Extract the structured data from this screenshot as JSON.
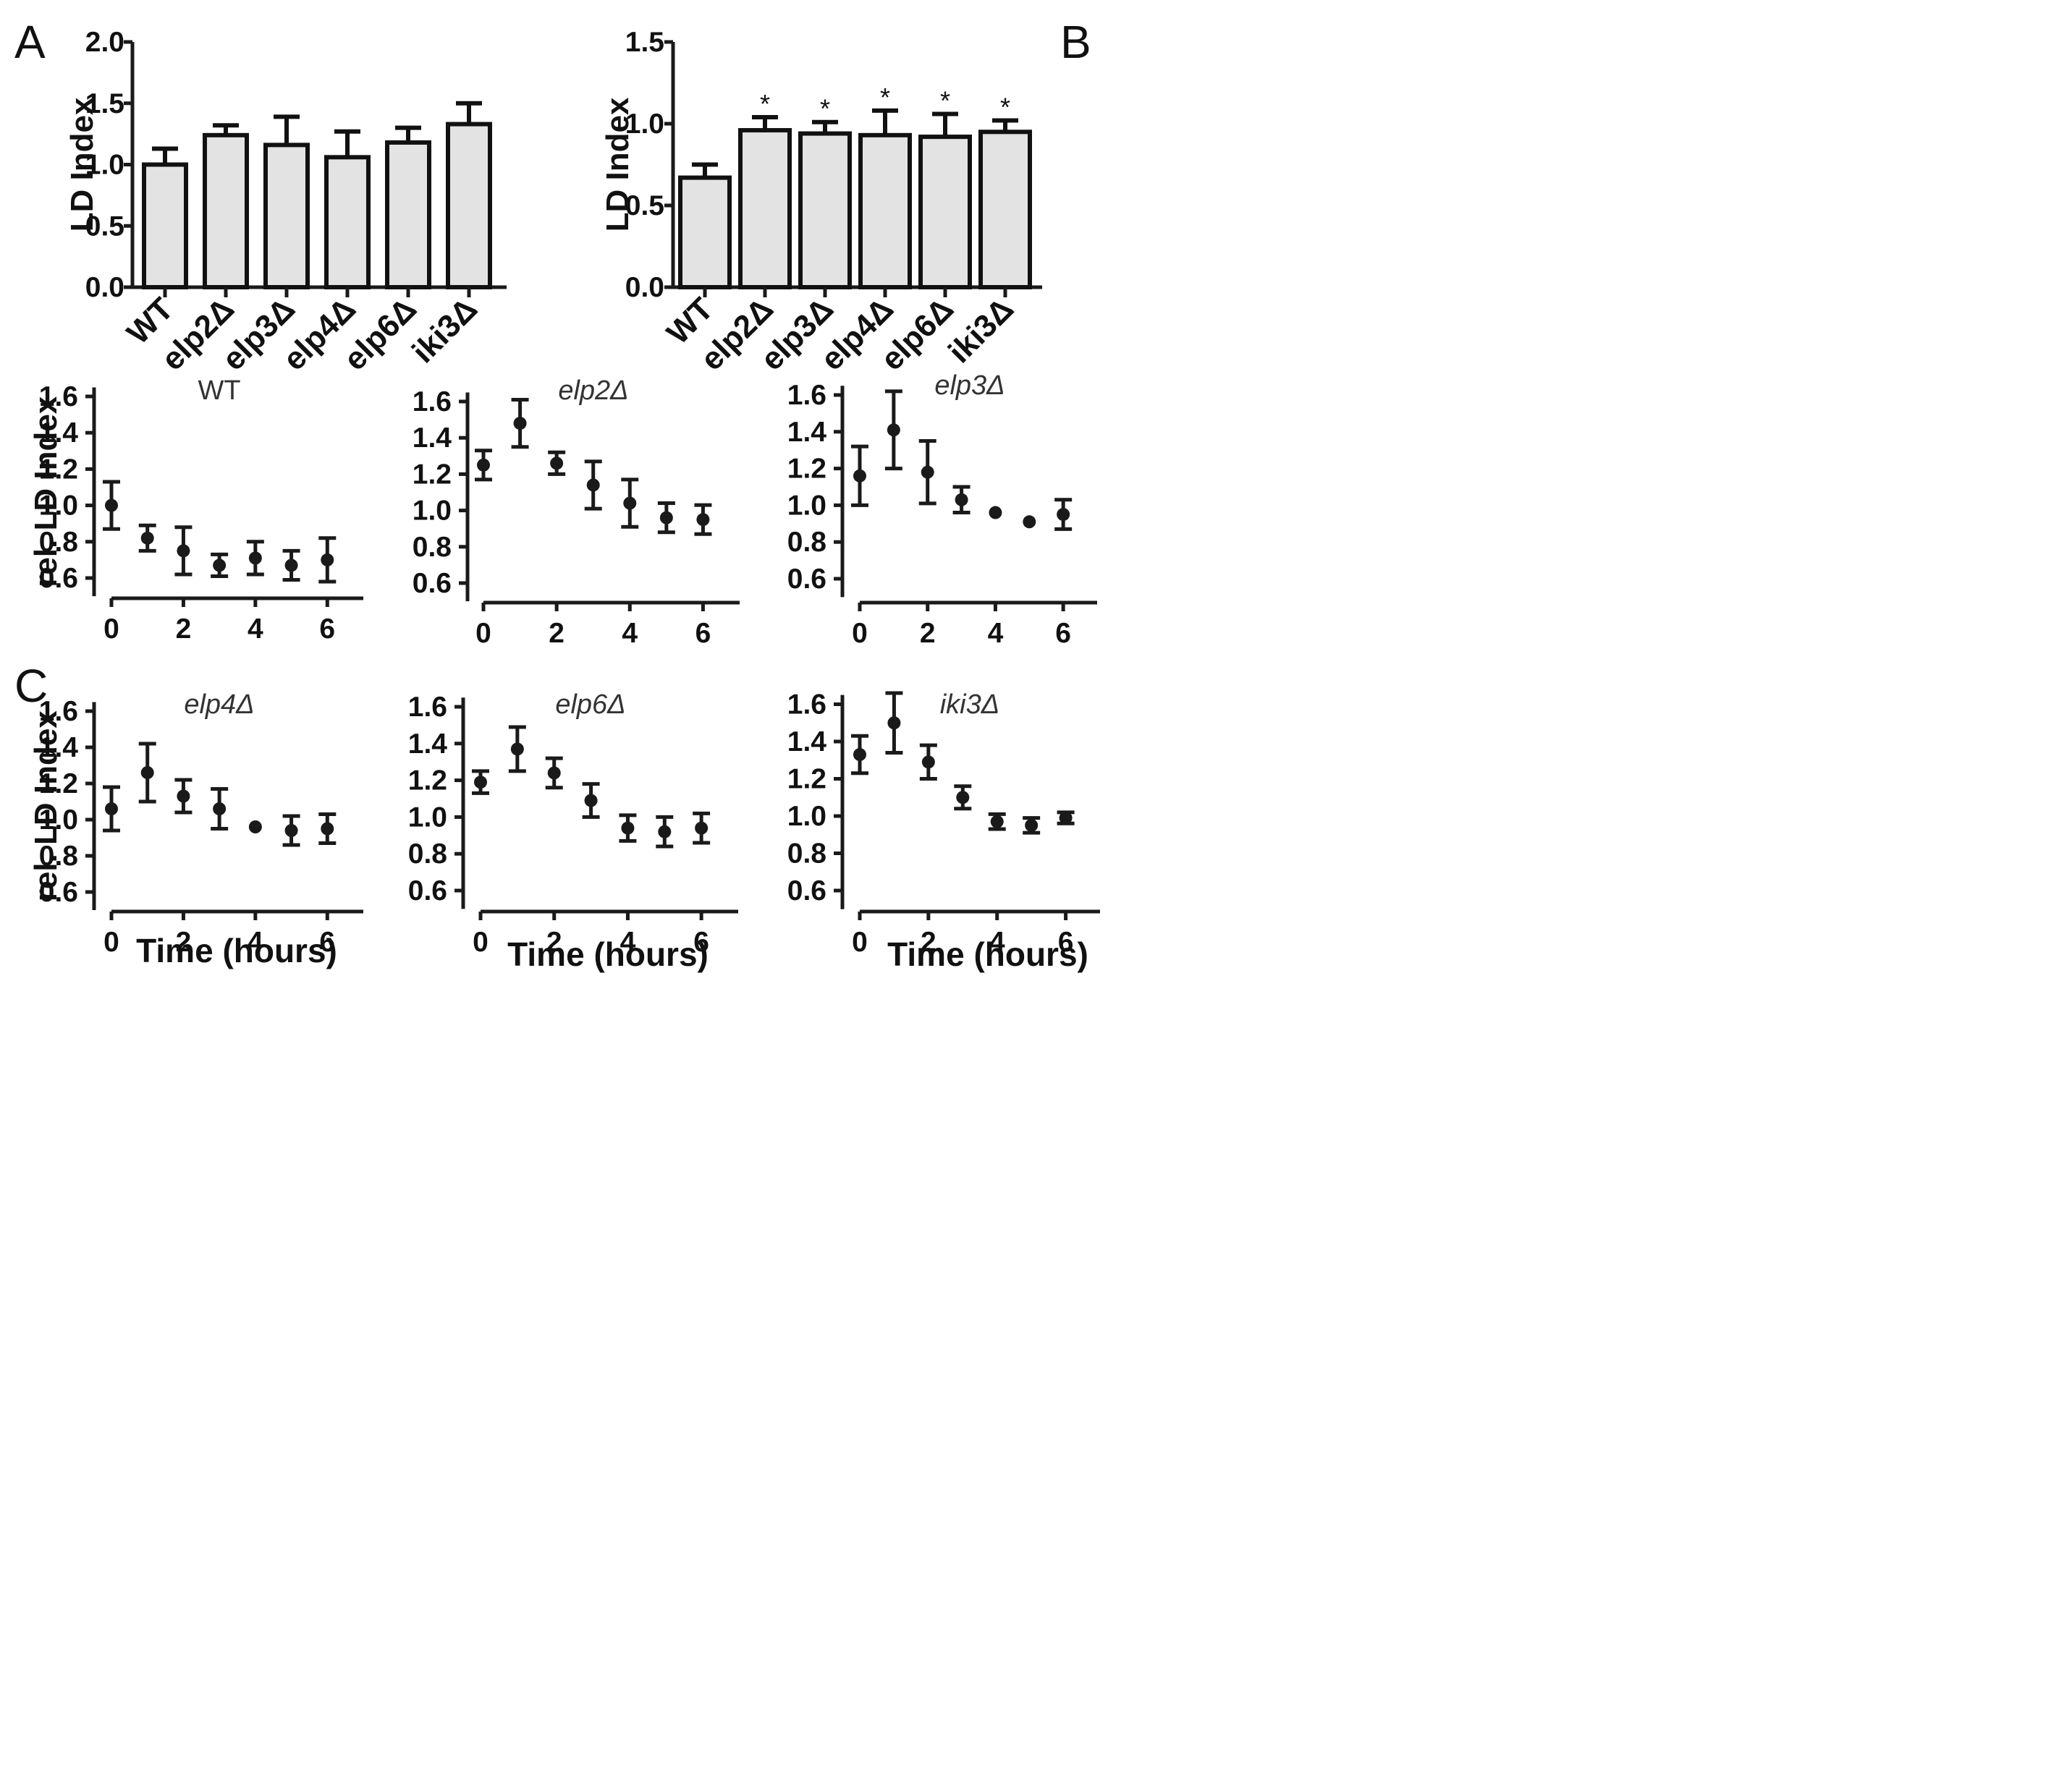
{
  "figure": {
    "panel_labels": [
      "A",
      "B",
      "C"
    ]
  },
  "chart_data": [
    {
      "id": "A",
      "type": "bar",
      "ylabel": "LD Index",
      "ylim": [
        0,
        2.0
      ],
      "yticks": [
        0.0,
        0.5,
        1.0,
        1.5,
        2.0
      ],
      "ytick_labels": [
        "0.0",
        "0.5",
        "1.0",
        "1.5",
        "2.0"
      ],
      "categories": [
        "WT",
        "elp2Δ",
        "elp3Δ",
        "elp4Δ",
        "elp6Δ",
        "iki3Δ"
      ],
      "values": [
        1.0,
        1.24,
        1.16,
        1.06,
        1.18,
        1.33
      ],
      "errors": [
        0.13,
        0.08,
        0.23,
        0.21,
        0.12,
        0.17
      ],
      "annotations": [
        "",
        "",
        "",
        "",
        "",
        ""
      ],
      "bar_color": "#e3e3e3"
    },
    {
      "id": "B",
      "type": "bar",
      "ylabel": "LD Index",
      "ylim": [
        0,
        1.5
      ],
      "yticks": [
        0.0,
        0.5,
        1.0,
        1.5
      ],
      "ytick_labels": [
        "0.0",
        "0.5",
        "1.0",
        "1.5"
      ],
      "categories": [
        "WT",
        "elp2Δ",
        "elp3Δ",
        "elp4Δ",
        "elp6Δ",
        "iki3Δ"
      ],
      "values": [
        0.67,
        0.96,
        0.94,
        0.93,
        0.92,
        0.95
      ],
      "errors": [
        0.08,
        0.08,
        0.07,
        0.15,
        0.14,
        0.07
      ],
      "annotations": [
        "",
        "*",
        "*",
        "*",
        "*",
        "*"
      ],
      "bar_color": "#e3e3e3"
    },
    {
      "id": "C-WT",
      "type": "scatter",
      "title": "WT",
      "title_italic": false,
      "ylabel": "rel. LD Index",
      "xlabel": "",
      "xlim": [
        0,
        7
      ],
      "ylim": [
        0.5,
        1.65
      ],
      "yticks": [
        0.6,
        0.8,
        1.0,
        1.2,
        1.4,
        1.6
      ],
      "ytick_labels": [
        "0.6",
        "0.8",
        "1.0",
        "1.2",
        "1.4",
        "1.6"
      ],
      "xticks": [
        0,
        2,
        4,
        6
      ],
      "xtick_labels": [
        "0",
        "2",
        "4",
        "6"
      ],
      "x": [
        0,
        1,
        2,
        3,
        4,
        5,
        6
      ],
      "y": [
        1.0,
        0.82,
        0.75,
        0.67,
        0.71,
        0.67,
        0.7
      ],
      "err": [
        0.13,
        0.07,
        0.13,
        0.06,
        0.09,
        0.08,
        0.12
      ]
    },
    {
      "id": "C-elp2",
      "type": "scatter",
      "title": "elp2Δ",
      "title_italic": true,
      "ylabel": "",
      "xlabel": "",
      "xlim": [
        0,
        7
      ],
      "ylim": [
        0.5,
        1.65
      ],
      "yticks": [
        0.6,
        0.8,
        1.0,
        1.2,
        1.4,
        1.6
      ],
      "ytick_labels": [
        "0.6",
        "0.8",
        "1.0",
        "1.2",
        "1.4",
        "1.6"
      ],
      "xticks": [
        0,
        2,
        4,
        6
      ],
      "xtick_labels": [
        "0",
        "2",
        "4",
        "6"
      ],
      "x": [
        0,
        1,
        2,
        3,
        4,
        5,
        6
      ],
      "y": [
        1.25,
        1.48,
        1.26,
        1.14,
        1.04,
        0.96,
        0.95
      ],
      "err": [
        0.08,
        0.13,
        0.06,
        0.13,
        0.13,
        0.08,
        0.08
      ]
    },
    {
      "id": "C-elp3",
      "type": "scatter",
      "title": "elp3Δ",
      "title_italic": true,
      "ylabel": "",
      "xlabel": "",
      "xlim": [
        0,
        7
      ],
      "ylim": [
        0.5,
        1.65
      ],
      "yticks": [
        0.6,
        0.8,
        1.0,
        1.2,
        1.4,
        1.6
      ],
      "ytick_labels": [
        "0.6",
        "0.8",
        "1.0",
        "1.2",
        "1.4",
        "1.6"
      ],
      "xticks": [
        0,
        2,
        4,
        6
      ],
      "xtick_labels": [
        "0",
        "2",
        "4",
        "6"
      ],
      "x": [
        0,
        1,
        2,
        3,
        4,
        5,
        6
      ],
      "y": [
        1.16,
        1.41,
        1.18,
        1.03,
        0.96,
        0.91,
        0.95
      ],
      "err": [
        0.16,
        0.21,
        0.17,
        0.07,
        0,
        0,
        0.08
      ]
    },
    {
      "id": "C-elp4",
      "type": "scatter",
      "title": "elp4Δ",
      "title_italic": true,
      "ylabel": "rel. LD Index",
      "xlabel": "Time (hours)",
      "xlim": [
        0,
        7
      ],
      "ylim": [
        0.5,
        1.65
      ],
      "yticks": [
        0.6,
        0.8,
        1.0,
        1.2,
        1.4,
        1.6
      ],
      "ytick_labels": [
        "0.6",
        "0.8",
        "1.0",
        "1.2",
        "1.4",
        "1.6"
      ],
      "xticks": [
        0,
        2,
        4,
        6
      ],
      "xtick_labels": [
        "0",
        "2",
        "4",
        "6"
      ],
      "x": [
        0,
        1,
        2,
        3,
        4,
        5,
        6
      ],
      "y": [
        1.06,
        1.26,
        1.13,
        1.06,
        0.96,
        0.94,
        0.95
      ],
      "err": [
        0.12,
        0.16,
        0.09,
        0.11,
        0,
        0.08,
        0.08
      ]
    },
    {
      "id": "C-elp6",
      "type": "scatter",
      "title": "elp6Δ",
      "title_italic": true,
      "ylabel": "",
      "xlabel": "Time (hours)",
      "xlim": [
        0,
        7
      ],
      "ylim": [
        0.5,
        1.65
      ],
      "yticks": [
        0.6,
        0.8,
        1.0,
        1.2,
        1.4,
        1.6
      ],
      "ytick_labels": [
        "0.6",
        "0.8",
        "1.0",
        "1.2",
        "1.4",
        "1.6"
      ],
      "xticks": [
        0,
        2,
        4,
        6
      ],
      "xtick_labels": [
        "0",
        "2",
        "4",
        "6"
      ],
      "x": [
        0,
        1,
        2,
        3,
        4,
        5,
        6
      ],
      "y": [
        1.19,
        1.37,
        1.24,
        1.09,
        0.94,
        0.92,
        0.94
      ],
      "err": [
        0.06,
        0.12,
        0.08,
        0.09,
        0.07,
        0.08,
        0.08
      ]
    },
    {
      "id": "C-iki3",
      "type": "scatter",
      "title": "iki3Δ",
      "title_italic": true,
      "ylabel": "",
      "xlabel": "Time (hours)",
      "xlim": [
        0,
        7
      ],
      "ylim": [
        0.5,
        1.65
      ],
      "yticks": [
        0.6,
        0.8,
        1.0,
        1.2,
        1.4,
        1.6
      ],
      "ytick_labels": [
        "0.6",
        "0.8",
        "1.0",
        "1.2",
        "1.4",
        "1.6"
      ],
      "xticks": [
        0,
        2,
        4,
        6
      ],
      "xtick_labels": [
        "0",
        "2",
        "4",
        "6"
      ],
      "x": [
        0,
        1,
        2,
        3,
        4,
        5,
        6
      ],
      "y": [
        1.33,
        1.5,
        1.29,
        1.1,
        0.97,
        0.95,
        0.99
      ],
      "err": [
        0.1,
        0.16,
        0.09,
        0.06,
        0.04,
        0.04,
        0.03
      ]
    }
  ]
}
